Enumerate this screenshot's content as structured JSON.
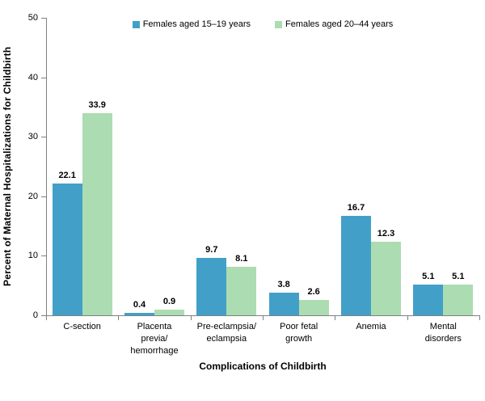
{
  "chart_data": {
    "type": "bar",
    "title": "",
    "xlabel": "Complications of Childbirth",
    "ylabel": "Percent of Maternal Hospitalizations for Childbirth",
    "categories": [
      "C-section",
      "Placenta previa/hemorrhage",
      "Pre-eclampsia/eclampsia",
      "Poor fetal growth",
      "Anemia",
      "Mental disorders"
    ],
    "category_display": [
      "C-section",
      "Placenta\nprevia/\nhemorrhage",
      "Pre-eclampsia/\neclampsia",
      "Poor fetal\ngrowth",
      "Anemia",
      "Mental\ndisorders"
    ],
    "series": [
      {
        "name": "Females aged 15–19 years",
        "color": "#42a0c8",
        "values": [
          22.1,
          0.4,
          9.7,
          3.8,
          16.7,
          5.1
        ]
      },
      {
        "name": "Females aged 20–44 years",
        "color": "#acdcb1",
        "values": [
          33.9,
          0.9,
          8.1,
          2.6,
          12.3,
          5.1
        ]
      }
    ],
    "yticks": [
      0,
      10,
      20,
      30,
      40,
      50
    ],
    "ylim": [
      0,
      50
    ],
    "grid": false,
    "legend_position": "top",
    "axis_color": "#808080",
    "value_format_decimals": 1
  }
}
